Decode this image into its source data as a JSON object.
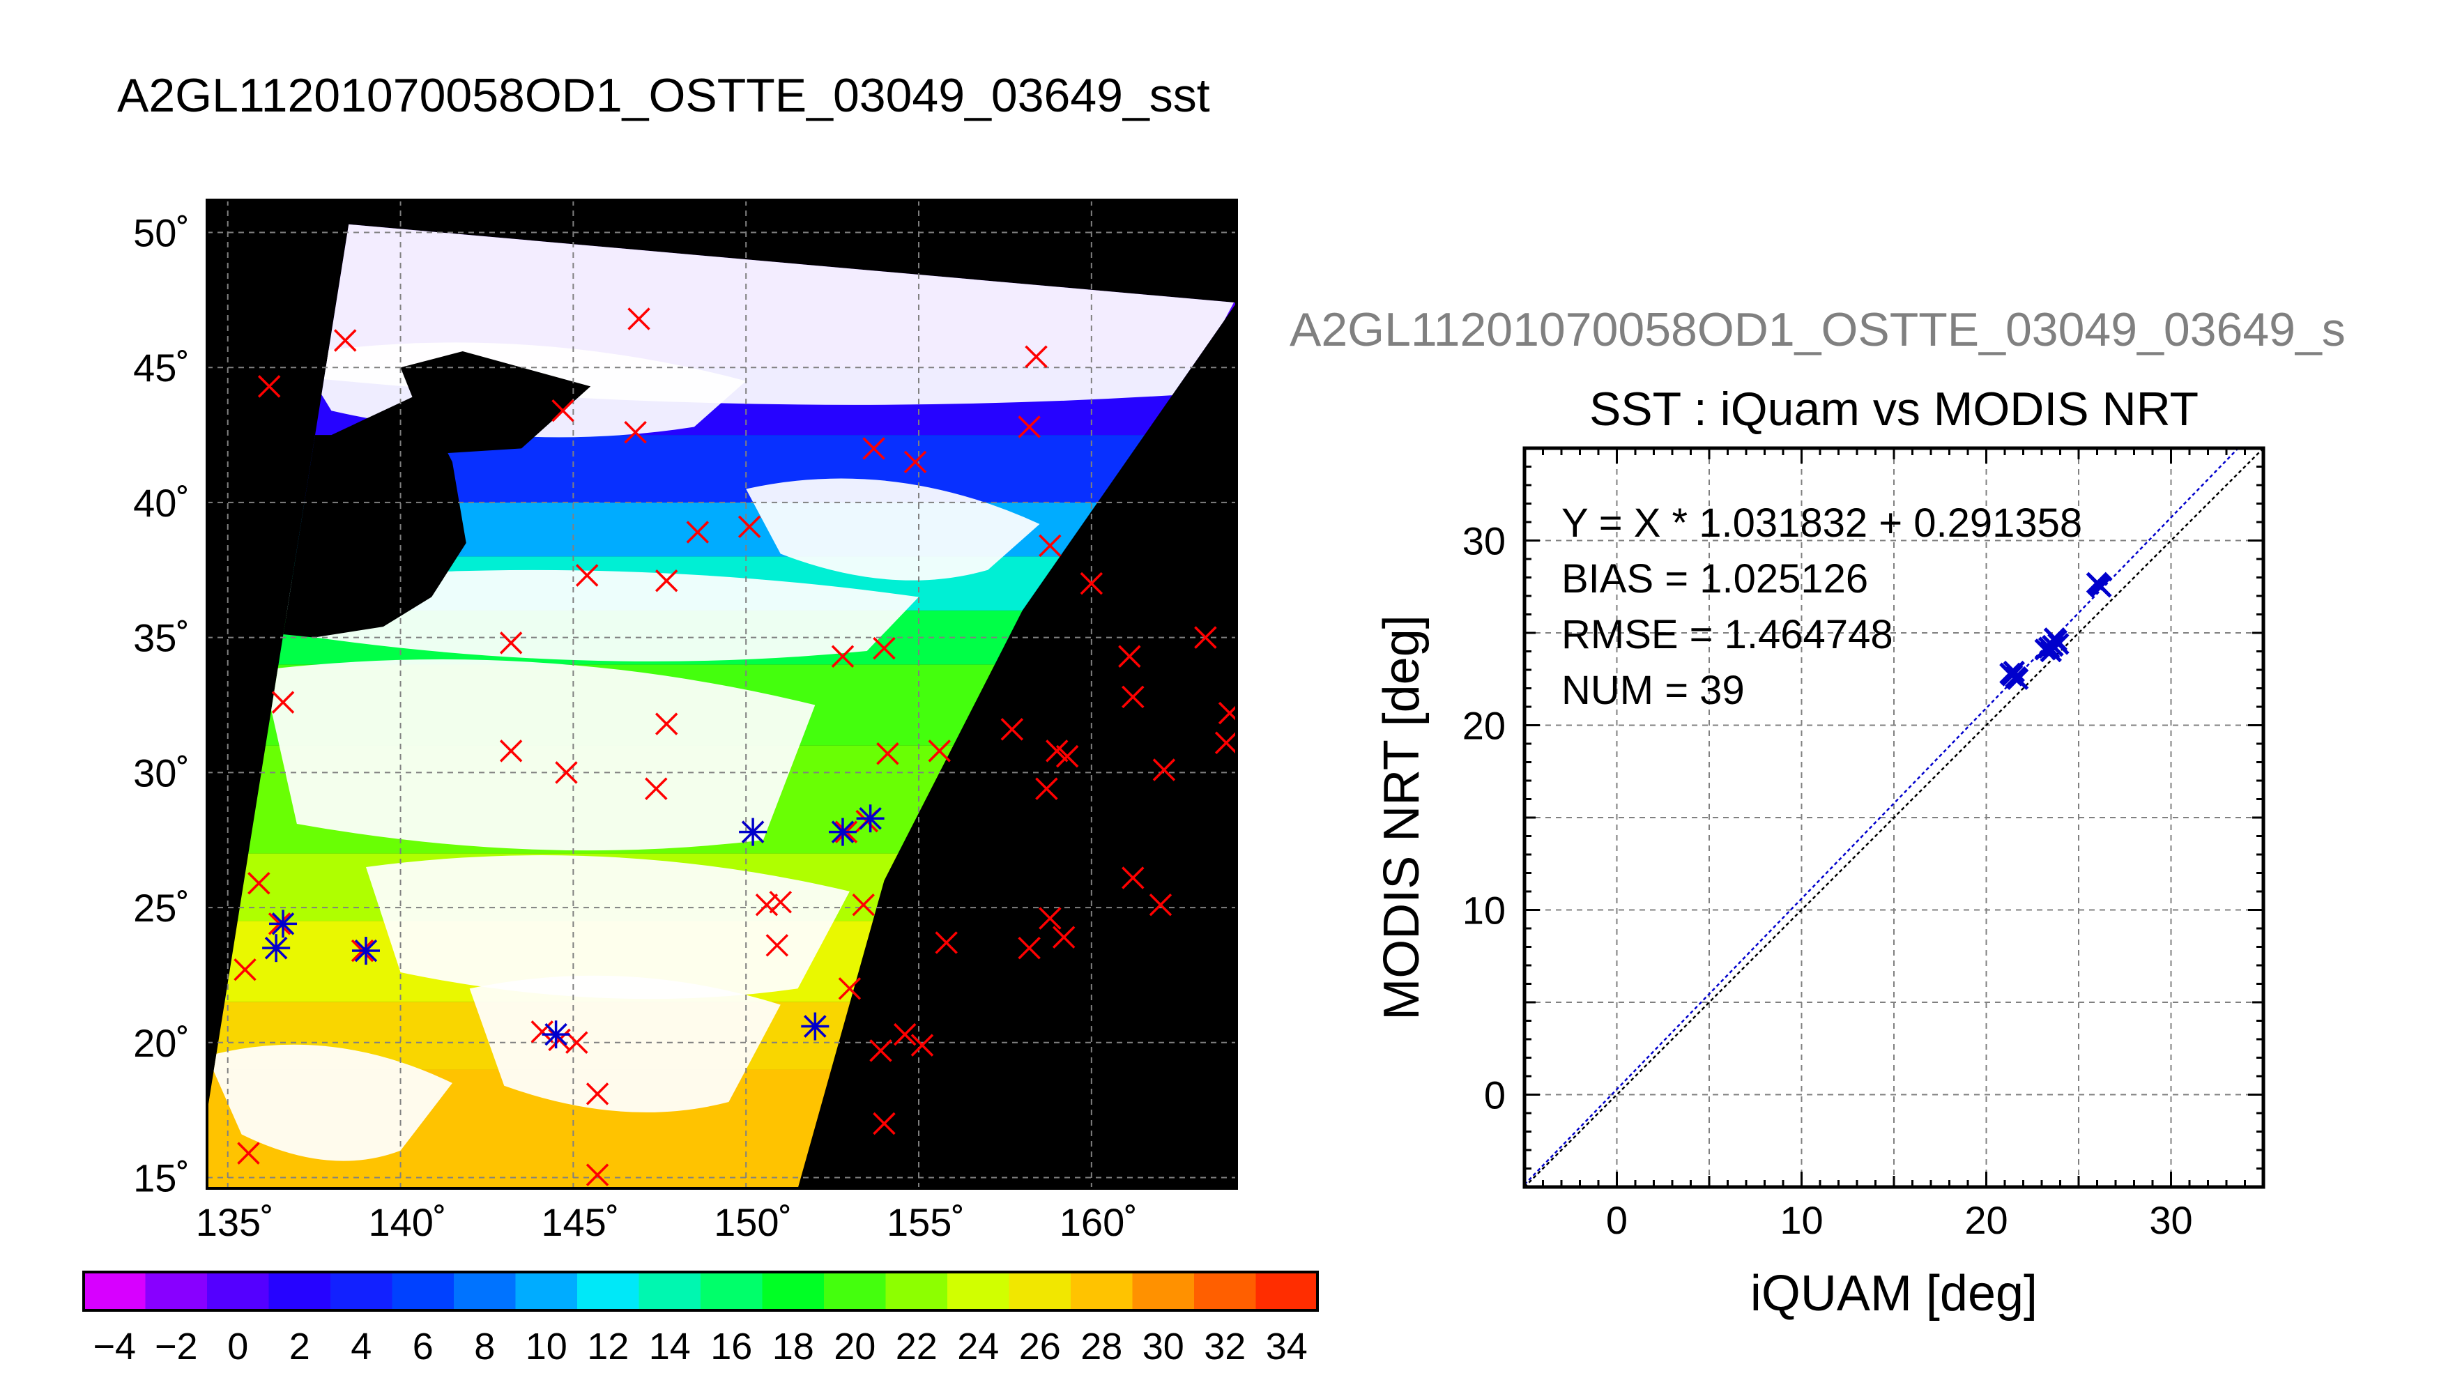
{
  "page": {
    "main_title": "A2GL11201070058OD1_OSTTE_03049_03649_sst",
    "secondary_title": "A2GL11201070058OD1_OSTTE_03049_03649_s"
  },
  "colors": {
    "map_background": "#000000",
    "land_cloud": "#ffffff",
    "marker_red": "#ff0000",
    "marker_blue": "#0000cc",
    "fit_line": "#0000cc",
    "identity_line": "#000000",
    "grid": "#808080"
  },
  "chart_data": [
    {
      "type": "scatter",
      "chart": "map",
      "description_of_axes": "longitude (deg E) vs latitude (deg N)",
      "xlim": [
        134.4,
        164.2
      ],
      "ylim": [
        14.6,
        51.2
      ],
      "xticks": [
        135,
        140,
        145,
        150,
        155,
        160
      ],
      "yticks": [
        15,
        20,
        25,
        30,
        35,
        40,
        45,
        50
      ],
      "xtick_labels": [
        "135˚",
        "140˚",
        "145˚",
        "150˚",
        "155˚",
        "160˚"
      ],
      "ytick_labels": [
        "15˚",
        "20˚",
        "25˚",
        "30˚",
        "35˚",
        "40˚",
        "45˚",
        "50˚"
      ],
      "grid": true,
      "swath_outline": [
        [
          134.4,
          17.4
        ],
        [
          138.5,
          50.3
        ],
        [
          164.2,
          47.4
        ],
        [
          158.0,
          36.0
        ],
        [
          154.0,
          26.0
        ],
        [
          151.5,
          14.6
        ],
        [
          134.4,
          14.6
        ]
      ],
      "sst_bands": [
        {
          "lat_from": 14.6,
          "lat_to": 19.0,
          "sst": 28
        },
        {
          "lat_from": 19.0,
          "lat_to": 21.5,
          "sst": 27
        },
        {
          "lat_from": 21.5,
          "lat_to": 24.5,
          "sst": 25
        },
        {
          "lat_from": 24.5,
          "lat_to": 27.0,
          "sst": 23
        },
        {
          "lat_from": 27.0,
          "lat_to": 31.0,
          "sst": 21
        },
        {
          "lat_from": 31.0,
          "lat_to": 34.0,
          "sst": 20
        },
        {
          "lat_from": 34.0,
          "lat_to": 36.0,
          "sst": 17
        },
        {
          "lat_from": 36.0,
          "lat_to": 38.0,
          "sst": 13
        },
        {
          "lat_from": 38.0,
          "lat_to": 40.0,
          "sst": 10
        },
        {
          "lat_from": 40.0,
          "lat_to": 42.5,
          "sst": 5
        },
        {
          "lat_from": 42.5,
          "lat_to": 45.0,
          "sst": 2
        },
        {
          "lat_from": 45.0,
          "lat_to": 51.2,
          "sst": 0
        }
      ],
      "red_markers": [
        [
          136.2,
          44.3
        ],
        [
          138.4,
          46.0
        ],
        [
          146.9,
          46.8
        ],
        [
          144.7,
          43.4
        ],
        [
          146.8,
          42.6
        ],
        [
          153.7,
          42.0
        ],
        [
          154.9,
          41.5
        ],
        [
          158.4,
          45.4
        ],
        [
          158.2,
          42.8
        ],
        [
          150.1,
          39.1
        ],
        [
          148.6,
          38.9
        ],
        [
          145.4,
          37.3
        ],
        [
          147.7,
          37.1
        ],
        [
          158.8,
          38.4
        ],
        [
          160.0,
          37.0
        ],
        [
          143.2,
          34.8
        ],
        [
          152.8,
          34.3
        ],
        [
          154.0,
          34.6
        ],
        [
          136.6,
          32.6
        ],
        [
          147.7,
          31.8
        ],
        [
          143.2,
          30.8
        ],
        [
          144.8,
          30.0
        ],
        [
          147.4,
          29.4
        ],
        [
          154.1,
          30.7
        ],
        [
          155.6,
          30.8
        ],
        [
          157.7,
          31.6
        ],
        [
          159.0,
          30.8
        ],
        [
          159.3,
          30.6
        ],
        [
          158.7,
          29.4
        ],
        [
          161.1,
          34.3
        ],
        [
          161.2,
          32.8
        ],
        [
          162.1,
          30.1
        ],
        [
          163.3,
          35.0
        ],
        [
          163.9,
          31.1
        ],
        [
          164.0,
          32.2
        ],
        [
          150.2,
          27.8
        ],
        [
          152.9,
          27.8
        ],
        [
          153.5,
          28.2
        ],
        [
          135.9,
          25.9
        ],
        [
          136.5,
          24.4
        ],
        [
          135.5,
          22.7
        ],
        [
          136.4,
          23.5
        ],
        [
          138.9,
          23.4
        ],
        [
          150.6,
          25.1
        ],
        [
          151.0,
          25.2
        ],
        [
          150.9,
          23.6
        ],
        [
          153.4,
          25.1
        ],
        [
          155.8,
          23.7
        ],
        [
          158.2,
          23.5
        ],
        [
          158.8,
          24.6
        ],
        [
          159.2,
          23.9
        ],
        [
          161.2,
          26.1
        ],
        [
          162.0,
          25.1
        ],
        [
          153.0,
          22.0
        ],
        [
          152.0,
          20.6
        ],
        [
          144.1,
          20.4
        ],
        [
          144.6,
          20.1
        ],
        [
          145.1,
          20.0
        ],
        [
          153.9,
          19.7
        ],
        [
          154.6,
          20.3
        ],
        [
          155.1,
          19.9
        ],
        [
          154.0,
          17.0
        ],
        [
          145.7,
          18.1
        ],
        [
          145.7,
          15.1
        ],
        [
          135.6,
          15.9
        ]
      ],
      "blue_markers": [
        [
          136.6,
          24.4
        ],
        [
          136.4,
          23.5
        ],
        [
          139.0,
          23.4
        ],
        [
          144.5,
          20.3
        ],
        [
          150.2,
          27.8
        ],
        [
          152.8,
          27.8
        ],
        [
          153.6,
          28.3
        ],
        [
          152.0,
          20.6
        ]
      ]
    },
    {
      "type": "scatter",
      "chart": "comparison",
      "title": "SST : iQuam vs MODIS NRT",
      "xlabel": "iQUAM [deg]",
      "ylabel": "MODIS NRT [deg]",
      "xlim": [
        -5,
        35
      ],
      "ylim": [
        -5,
        35
      ],
      "xticks": [
        0,
        10,
        20,
        30
      ],
      "yticks": [
        0,
        10,
        20,
        30
      ],
      "grid": true,
      "annotations": [
        "Y = X * 1.031832 + 0.291358",
        "BIAS = 1.025126",
        "RMSE = 1.464748",
        "NUM = 39"
      ],
      "fit": {
        "slope": 1.031832,
        "intercept": 0.291358
      },
      "points": [
        [
          21.4,
          22.7
        ],
        [
          21.6,
          22.6
        ],
        [
          21.5,
          22.9
        ],
        [
          21.7,
          22.5
        ],
        [
          21.3,
          22.8
        ],
        [
          23.2,
          24.1
        ],
        [
          23.6,
          24.3
        ],
        [
          23.8,
          24.6
        ],
        [
          23.4,
          24.2
        ],
        [
          23.9,
          24.4
        ],
        [
          23.7,
          24.7
        ],
        [
          23.5,
          24.0
        ],
        [
          26.1,
          27.6
        ],
        [
          26.0,
          27.7
        ],
        [
          26.2,
          27.5
        ]
      ]
    }
  ],
  "colorbar": {
    "vmin": -5,
    "vmax": 35,
    "labels": [
      "−4",
      "−2",
      "0",
      "2",
      "4",
      "6",
      "8",
      "10",
      "12",
      "14",
      "16",
      "18",
      "20",
      "22",
      "24",
      "26",
      "28",
      "30",
      "32",
      "34"
    ],
    "label_values": [
      -4,
      -2,
      0,
      2,
      4,
      6,
      8,
      10,
      12,
      14,
      16,
      18,
      20,
      22,
      24,
      26,
      28,
      30,
      32,
      34
    ]
  }
}
